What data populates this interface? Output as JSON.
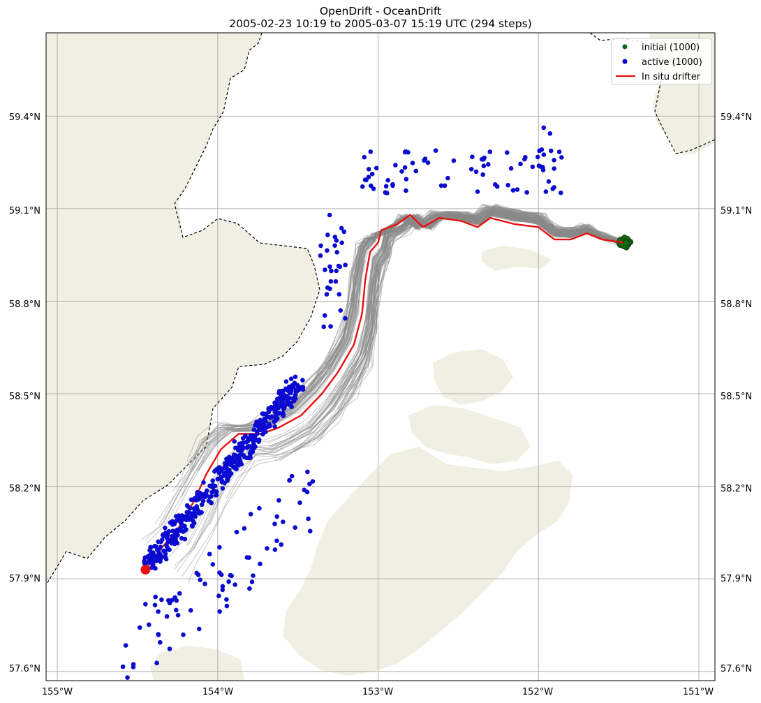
{
  "title": {
    "line1": "OpenDrift - OceanDrift",
    "line2": "2005-02-23 10:19 to 2005-03-07 15:19 UTC (294 steps)"
  },
  "axes": {
    "lon_ticks": [
      "155°W",
      "154°W",
      "153°W",
      "152°W",
      "151°W"
    ],
    "lat_ticks": [
      "59.4°N",
      "59.1°N",
      "58.8°N",
      "58.5°N",
      "58.2°N",
      "57.9°N",
      "57.6°N"
    ],
    "lon_range": [
      -155.07,
      -150.9
    ],
    "lat_range": [
      57.57,
      59.67
    ],
    "grid": true
  },
  "legend": {
    "position": "top-right",
    "items": [
      {
        "label": "initial (1000)",
        "color": "#126612",
        "marker": "dot"
      },
      {
        "label": "active (1000)",
        "color": "#0000cc",
        "marker": "dot"
      },
      {
        "label": "In situ drifter",
        "color": "#e81010",
        "marker": "line"
      }
    ]
  },
  "colors": {
    "land": "#efefe4",
    "trajectory": "#8a8a8a",
    "drifter": "#e81010",
    "active": "#0a0ad0",
    "initial": "#167016",
    "grid": "#b0b0b0"
  },
  "drifter_track": [
    [
      -154.45,
      57.93
    ],
    [
      -154.35,
      58.0
    ],
    [
      -154.25,
      58.06
    ],
    [
      -154.15,
      58.15
    ],
    [
      -154.07,
      58.24
    ],
    [
      -153.98,
      58.32
    ],
    [
      -153.87,
      58.37
    ],
    [
      -153.73,
      58.37
    ],
    [
      -153.62,
      58.39
    ],
    [
      -153.48,
      58.43
    ],
    [
      -153.35,
      58.5
    ],
    [
      -153.25,
      58.57
    ],
    [
      -153.15,
      58.66
    ],
    [
      -153.1,
      58.76
    ],
    [
      -153.08,
      58.87
    ],
    [
      -153.05,
      58.96
    ],
    [
      -153.0,
      58.99
    ],
    [
      -152.98,
      59.03
    ],
    [
      -152.88,
      59.05
    ],
    [
      -152.8,
      59.08
    ],
    [
      -152.72,
      59.04
    ],
    [
      -152.62,
      59.07
    ],
    [
      -152.48,
      59.06
    ],
    [
      -152.38,
      59.04
    ],
    [
      -152.3,
      59.07
    ],
    [
      -152.15,
      59.05
    ],
    [
      -152.0,
      59.04
    ],
    [
      -151.9,
      59.0
    ],
    [
      -151.8,
      59.0
    ],
    [
      -151.7,
      59.02
    ],
    [
      -151.6,
      59.0
    ],
    [
      -151.47,
      58.99
    ]
  ],
  "drifter_end": [
    -154.45,
    57.93
  ],
  "initial_center": [
    -151.46,
    58.99
  ]
}
